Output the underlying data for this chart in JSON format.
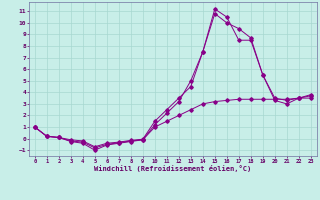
{
  "xlabel": "Windchill (Refroidissement éolien,°C)",
  "bg_color": "#c8eee8",
  "grid_color": "#a8d8d0",
  "line_color": "#880088",
  "xlim": [
    -0.5,
    23.5
  ],
  "ylim": [
    -1.5,
    11.8
  ],
  "yticks": [
    -1,
    0,
    1,
    2,
    3,
    4,
    5,
    6,
    7,
    8,
    9,
    10,
    11
  ],
  "xticks": [
    0,
    1,
    2,
    3,
    4,
    5,
    6,
    7,
    8,
    9,
    10,
    11,
    12,
    13,
    14,
    15,
    16,
    17,
    18,
    19,
    20,
    21,
    22,
    23
  ],
  "series": [
    {
      "x": [
        0,
        1,
        2,
        3,
        4,
        5,
        6,
        7,
        8,
        9,
        10,
        11,
        12,
        13,
        14,
        15,
        16,
        17,
        18,
        19,
        20,
        21,
        22,
        23
      ],
      "y": [
        1.0,
        0.2,
        0.1,
        -0.2,
        -0.3,
        -0.8,
        -0.5,
        -0.35,
        -0.2,
        -0.1,
        1.0,
        1.5,
        2.0,
        2.5,
        3.0,
        3.2,
        3.3,
        3.4,
        3.4,
        3.4,
        3.4,
        3.4,
        3.5,
        3.5
      ]
    },
    {
      "x": [
        0,
        1,
        2,
        3,
        4,
        5,
        6,
        7,
        8,
        9,
        10,
        11,
        12,
        13,
        14,
        15,
        16,
        17,
        18,
        19,
        20,
        21,
        22,
        23
      ],
      "y": [
        1.0,
        0.2,
        0.1,
        -0.1,
        -0.2,
        -0.7,
        -0.4,
        -0.3,
        -0.15,
        -0.05,
        1.5,
        2.5,
        3.5,
        4.5,
        7.5,
        11.2,
        10.5,
        8.5,
        8.5,
        5.5,
        3.5,
        3.3,
        3.5,
        3.7
      ]
    },
    {
      "x": [
        0,
        1,
        2,
        3,
        4,
        5,
        6,
        7,
        8,
        9,
        10,
        11,
        12,
        13,
        14,
        15,
        16,
        17,
        18,
        19,
        20,
        21,
        22,
        23
      ],
      "y": [
        1.0,
        0.2,
        0.1,
        -0.25,
        -0.4,
        -1.0,
        -0.55,
        -0.4,
        -0.25,
        -0.1,
        1.2,
        2.2,
        3.2,
        5.0,
        7.5,
        10.8,
        10.0,
        9.5,
        8.7,
        5.5,
        3.3,
        3.0,
        3.5,
        3.8
      ]
    }
  ]
}
